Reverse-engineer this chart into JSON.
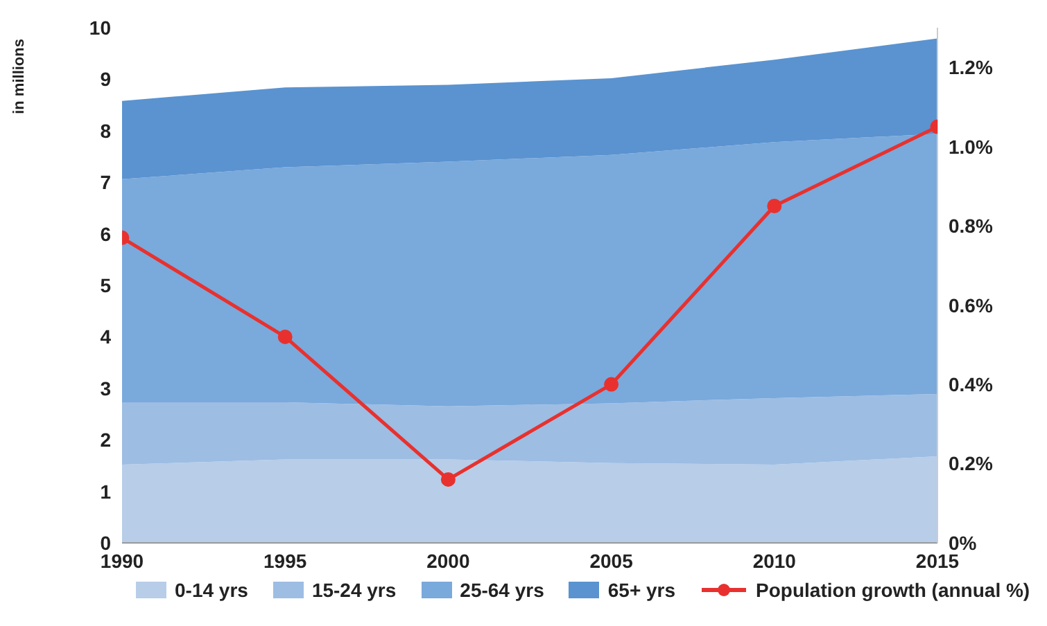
{
  "chart_data": {
    "type": "area",
    "stacked": true,
    "ylabel": "in millions",
    "x": [
      1990,
      1995,
      2000,
      2005,
      2010,
      2015
    ],
    "xlim": [
      1990,
      2015
    ],
    "xticks": [
      1990,
      1995,
      2000,
      2005,
      2010,
      2015
    ],
    "ylim": [
      0,
      10
    ],
    "yticks": [
      0,
      1,
      2,
      3,
      4,
      5,
      6,
      7,
      8,
      9,
      10
    ],
    "y2lim": [
      0,
      1.3
    ],
    "y2ticks": [
      {
        "value": 0,
        "label": "0%"
      },
      {
        "value": 0.2,
        "label": "0.2%"
      },
      {
        "value": 0.4,
        "label": "0.4%"
      },
      {
        "value": 0.6,
        "label": "0.6%"
      },
      {
        "value": 0.8,
        "label": "0.8%"
      },
      {
        "value": 1.0,
        "label": "1.0%"
      },
      {
        "value": 1.2,
        "label": "1.2%"
      }
    ],
    "grid": false,
    "legend": "bottom",
    "series": [
      {
        "name": "0-14 yrs",
        "color": "#b7cde8",
        "values": [
          1.52,
          1.62,
          1.62,
          1.55,
          1.52,
          1.68
        ]
      },
      {
        "name": "15-24 yrs",
        "color": "#9dbde3",
        "values": [
          1.21,
          1.11,
          1.03,
          1.16,
          1.29,
          1.21
        ]
      },
      {
        "name": "25-64 yrs",
        "color": "#7aa9dc",
        "values": [
          4.33,
          4.56,
          4.75,
          4.82,
          4.97,
          5.05
        ]
      },
      {
        "name": "65+ yrs",
        "color": "#5a93d0",
        "values": [
          1.52,
          1.55,
          1.49,
          1.49,
          1.6,
          1.85
        ]
      },
      {
        "name": "Population growth (annual %)",
        "type": "line",
        "axis": "y2",
        "color": "#e8312e",
        "marker": "circle",
        "line_style": "solid",
        "values": [
          0.77,
          0.52,
          0.16,
          0.4,
          0.85,
          1.05
        ]
      }
    ]
  }
}
